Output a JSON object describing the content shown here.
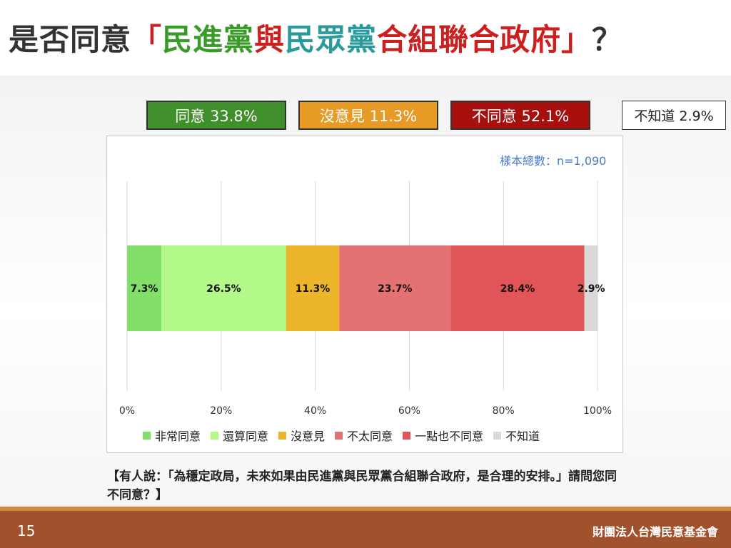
{
  "title": {
    "parts": [
      {
        "text": "是否同意",
        "color": "#333333"
      },
      {
        "text": "「",
        "color": "#cc2020"
      },
      {
        "text": "民進黨",
        "color": "#3a9a2a"
      },
      {
        "text": "與",
        "color": "#cc2020"
      },
      {
        "text": "民眾黨",
        "color": "#2a9a9a"
      },
      {
        "text": "合組聯合政府",
        "color": "#cc2020"
      },
      {
        "text": "」",
        "color": "#cc2020"
      },
      {
        "text": "？",
        "color": "#333333"
      }
    ]
  },
  "summary": [
    {
      "label": "同意 33.8%",
      "color": "#3f8f2a"
    },
    {
      "label": "沒意見 11.3%",
      "color": "#e89a26"
    },
    {
      "label": "不同意 52.1%",
      "color": "#a80f0f"
    },
    {
      "label": "不知道 2.9%",
      "color": "#ffffff"
    }
  ],
  "sample_size": "樣本總數：n=1,090",
  "chart_data": {
    "type": "bar",
    "orientation": "horizontal-stacked",
    "xlim": [
      0,
      100
    ],
    "x_ticks": [
      "0%",
      "20%",
      "40%",
      "60%",
      "80%",
      "100%"
    ],
    "grid": true,
    "legend_position": "bottom",
    "series": [
      {
        "name": "非常同意",
        "value": 7.3,
        "label": "7.3%",
        "color": "#82e06a"
      },
      {
        "name": "還算同意",
        "value": 26.5,
        "label": "26.5%",
        "color": "#b2f98a"
      },
      {
        "name": "沒意見",
        "value": 11.3,
        "label": "11.3%",
        "color": "#ecb52c"
      },
      {
        "name": "不太同意",
        "value": 23.7,
        "label": "23.7%",
        "color": "#e57272"
      },
      {
        "name": "一點也不同意",
        "value": 28.4,
        "label": "28.4%",
        "color": "#e15457"
      },
      {
        "name": "不知道",
        "value": 2.9,
        "label": "2.9%",
        "color": "#d9d9d9"
      }
    ]
  },
  "question": "【有人說：「為穩定政局，未來如果由民進黨與民眾黨合組聯合政府，是合理的安排。」請問您同不同意？】",
  "footer": {
    "page_number": "15",
    "organization": "財團法人台灣民意基金會"
  }
}
